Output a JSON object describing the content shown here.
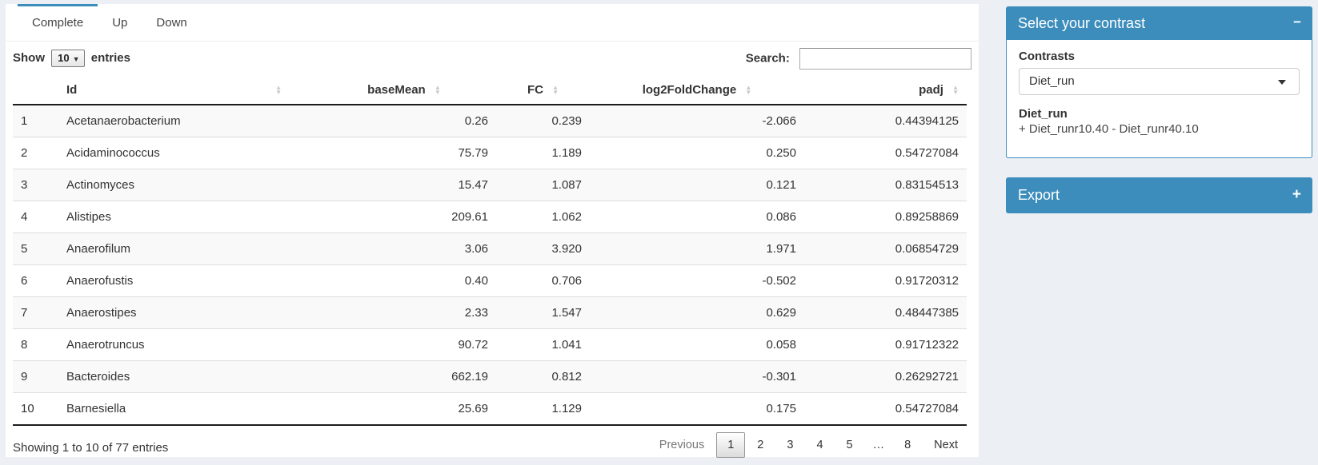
{
  "tabs": [
    {
      "label": "Complete",
      "active": true
    },
    {
      "label": "Up",
      "active": false
    },
    {
      "label": "Down",
      "active": false
    }
  ],
  "controls": {
    "show_label": "Show",
    "page_size": "10",
    "entries_label": "entries",
    "search_label": "Search:",
    "search_value": ""
  },
  "table": {
    "columns": [
      {
        "label": "Id"
      },
      {
        "label": "baseMean"
      },
      {
        "label": "FC"
      },
      {
        "label": "log2FoldChange"
      },
      {
        "label": "padj"
      }
    ],
    "rows": [
      {
        "num": "1",
        "id": "Acetanaerobacterium",
        "baseMean": "0.26",
        "fc": "0.239",
        "log2fc": "-2.066",
        "padj": "0.44394125"
      },
      {
        "num": "2",
        "id": "Acidaminococcus",
        "baseMean": "75.79",
        "fc": "1.189",
        "log2fc": "0.250",
        "padj": "0.54727084"
      },
      {
        "num": "3",
        "id": "Actinomyces",
        "baseMean": "15.47",
        "fc": "1.087",
        "log2fc": "0.121",
        "padj": "0.83154513"
      },
      {
        "num": "4",
        "id": "Alistipes",
        "baseMean": "209.61",
        "fc": "1.062",
        "log2fc": "0.086",
        "padj": "0.89258869"
      },
      {
        "num": "5",
        "id": "Anaerofilum",
        "baseMean": "3.06",
        "fc": "3.920",
        "log2fc": "1.971",
        "padj": "0.06854729"
      },
      {
        "num": "6",
        "id": "Anaerofustis",
        "baseMean": "0.40",
        "fc": "0.706",
        "log2fc": "-0.502",
        "padj": "0.91720312"
      },
      {
        "num": "7",
        "id": "Anaerostipes",
        "baseMean": "2.33",
        "fc": "1.547",
        "log2fc": "0.629",
        "padj": "0.48447385"
      },
      {
        "num": "8",
        "id": "Anaerotruncus",
        "baseMean": "90.72",
        "fc": "1.041",
        "log2fc": "0.058",
        "padj": "0.91712322"
      },
      {
        "num": "9",
        "id": "Bacteroides",
        "baseMean": "662.19",
        "fc": "0.812",
        "log2fc": "-0.301",
        "padj": "0.26292721"
      },
      {
        "num": "10",
        "id": "Barnesiella",
        "baseMean": "25.69",
        "fc": "1.129",
        "log2fc": "0.175",
        "padj": "0.54727084"
      }
    ]
  },
  "footer": {
    "info": "Showing 1 to 10 of 77 entries",
    "pagination": {
      "previous": "Previous",
      "pages": [
        "1",
        "2",
        "3",
        "4",
        "5",
        "…",
        "8"
      ],
      "current": "1",
      "next": "Next"
    }
  },
  "contrast_panel": {
    "title": "Select your contrast",
    "collapse_icon": "−",
    "contrasts_label": "Contrasts",
    "selected_contrast": "Diet_run",
    "contrast_name": "Diet_run",
    "contrast_formula": "+ Diet_runr10.40 - Diet_runr40.10"
  },
  "export_panel": {
    "title": "Export",
    "expand_icon": "+"
  },
  "colors": {
    "primary": "#3c8dbc",
    "page_bg": "#ecf0f5"
  }
}
